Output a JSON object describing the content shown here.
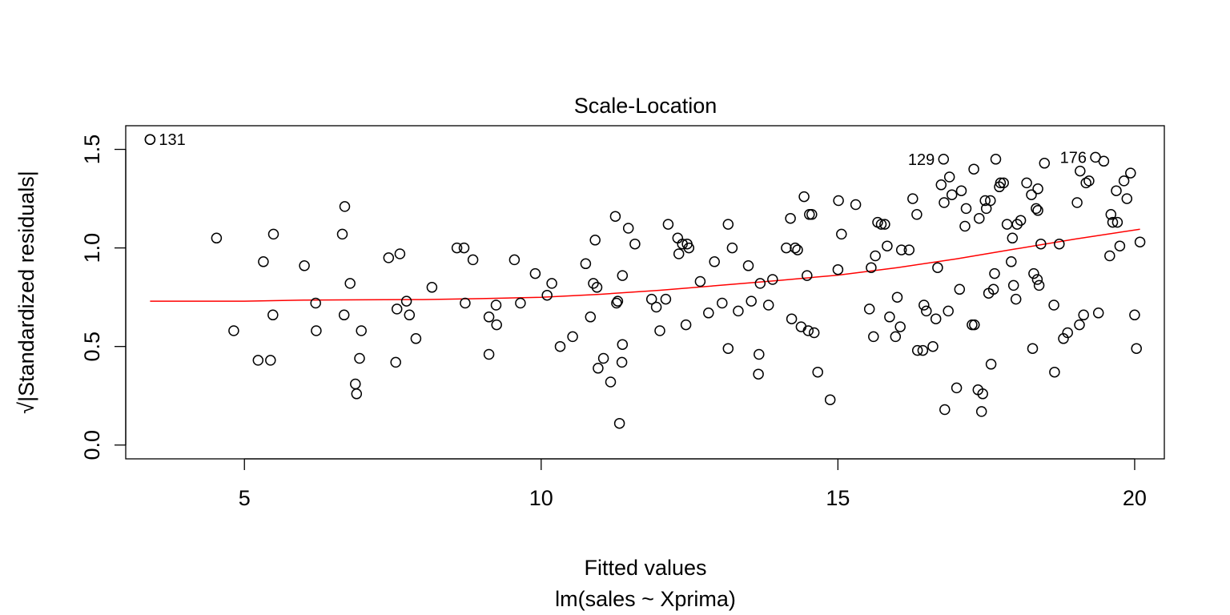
{
  "chart_data": {
    "type": "scatter",
    "title": "Scale-Location",
    "xlabel": "Fitted values",
    "subtitle": "lm(sales ~ Xprima)",
    "ylabel": "√|Standardized residuals|",
    "xlim": [
      3.0,
      20.5
    ],
    "ylim": [
      -0.07,
      1.62
    ],
    "x_ticks": [
      5,
      10,
      15,
      20
    ],
    "x_tick_labels": [
      "5",
      "10",
      "15",
      "20"
    ],
    "y_ticks": [
      0.0,
      0.5,
      1.0,
      1.5
    ],
    "y_tick_labels": [
      "0.0",
      "0.5",
      "1.0",
      "1.5"
    ],
    "grid": false,
    "legend": "none",
    "point_color": "#000000",
    "smooth_color": "#ff0000",
    "labeled_points": [
      {
        "label": "131",
        "x": 3.41,
        "y": 1.55
      },
      {
        "label": "129",
        "x": 16.78,
        "y": 1.45
      },
      {
        "label": "176",
        "x": 19.34,
        "y": 1.46
      }
    ],
    "points": [
      [
        3.41,
        1.55
      ],
      [
        4.53,
        1.05
      ],
      [
        4.82,
        0.58
      ],
      [
        5.23,
        0.43
      ],
      [
        5.32,
        0.93
      ],
      [
        5.44,
        0.43
      ],
      [
        5.48,
        0.66
      ],
      [
        5.49,
        1.07
      ],
      [
        6.01,
        0.91
      ],
      [
        6.2,
        0.72
      ],
      [
        6.21,
        0.58
      ],
      [
        6.65,
        1.07
      ],
      [
        6.68,
        0.66
      ],
      [
        6.69,
        1.21
      ],
      [
        6.78,
        0.82
      ],
      [
        6.87,
        0.31
      ],
      [
        6.89,
        0.26
      ],
      [
        6.94,
        0.44
      ],
      [
        6.97,
        0.58
      ],
      [
        7.43,
        0.95
      ],
      [
        7.55,
        0.42
      ],
      [
        7.57,
        0.69
      ],
      [
        7.62,
        0.97
      ],
      [
        7.73,
        0.73
      ],
      [
        7.78,
        0.66
      ],
      [
        7.89,
        0.54
      ],
      [
        8.16,
        0.8
      ],
      [
        8.58,
        1.0
      ],
      [
        8.7,
        1.0
      ],
      [
        8.72,
        0.72
      ],
      [
        8.85,
        0.94
      ],
      [
        9.12,
        0.46
      ],
      [
        9.12,
        0.65
      ],
      [
        9.24,
        0.71
      ],
      [
        9.25,
        0.61
      ],
      [
        9.55,
        0.94
      ],
      [
        9.65,
        0.72
      ],
      [
        9.9,
        0.87
      ],
      [
        10.1,
        0.76
      ],
      [
        10.18,
        0.82
      ],
      [
        10.32,
        0.5
      ],
      [
        10.53,
        0.55
      ],
      [
        10.75,
        0.92
      ],
      [
        10.83,
        0.65
      ],
      [
        10.88,
        0.82
      ],
      [
        10.91,
        1.04
      ],
      [
        10.94,
        0.8
      ],
      [
        10.96,
        0.39
      ],
      [
        11.05,
        0.44
      ],
      [
        11.17,
        0.32
      ],
      [
        11.25,
        1.16
      ],
      [
        11.27,
        0.72
      ],
      [
        11.29,
        0.73
      ],
      [
        11.32,
        0.11
      ],
      [
        11.36,
        0.42
      ],
      [
        11.37,
        0.51
      ],
      [
        11.37,
        0.86
      ],
      [
        11.47,
        1.1
      ],
      [
        11.58,
        1.02
      ],
      [
        11.86,
        0.74
      ],
      [
        11.94,
        0.7
      ],
      [
        12.0,
        0.58
      ],
      [
        12.1,
        0.74
      ],
      [
        12.14,
        1.12
      ],
      [
        12.3,
        1.05
      ],
      [
        12.32,
        0.97
      ],
      [
        12.38,
        1.02
      ],
      [
        12.44,
        0.61
      ],
      [
        12.46,
        1.02
      ],
      [
        12.49,
        1.0
      ],
      [
        12.68,
        0.83
      ],
      [
        12.82,
        0.67
      ],
      [
        12.92,
        0.93
      ],
      [
        13.05,
        0.72
      ],
      [
        13.15,
        1.12
      ],
      [
        13.15,
        0.49
      ],
      [
        13.22,
        1.0
      ],
      [
        13.32,
        0.68
      ],
      [
        13.49,
        0.91
      ],
      [
        13.54,
        0.73
      ],
      [
        13.66,
        0.36
      ],
      [
        13.67,
        0.46
      ],
      [
        13.69,
        0.82
      ],
      [
        13.83,
        0.71
      ],
      [
        13.9,
        0.84
      ],
      [
        14.13,
        1.0
      ],
      [
        14.2,
        1.15
      ],
      [
        14.22,
        0.64
      ],
      [
        14.28,
        1.0
      ],
      [
        14.32,
        0.99
      ],
      [
        14.38,
        0.6
      ],
      [
        14.43,
        1.26
      ],
      [
        14.48,
        0.86
      ],
      [
        14.5,
        0.58
      ],
      [
        14.52,
        1.17
      ],
      [
        14.56,
        1.17
      ],
      [
        14.6,
        0.57
      ],
      [
        14.66,
        0.37
      ],
      [
        14.87,
        0.23
      ],
      [
        15.0,
        0.89
      ],
      [
        15.01,
        1.24
      ],
      [
        15.06,
        1.07
      ],
      [
        15.3,
        1.22
      ],
      [
        15.53,
        0.69
      ],
      [
        15.56,
        0.9
      ],
      [
        15.6,
        0.55
      ],
      [
        15.63,
        0.96
      ],
      [
        15.67,
        1.13
      ],
      [
        15.73,
        1.12
      ],
      [
        15.79,
        1.12
      ],
      [
        15.83,
        1.01
      ],
      [
        15.87,
        0.65
      ],
      [
        15.97,
        0.55
      ],
      [
        16.0,
        0.75
      ],
      [
        16.05,
        0.6
      ],
      [
        16.07,
        0.99
      ],
      [
        16.2,
        0.99
      ],
      [
        16.26,
        1.25
      ],
      [
        16.33,
        1.17
      ],
      [
        16.34,
        0.48
      ],
      [
        16.43,
        0.48
      ],
      [
        16.45,
        0.71
      ],
      [
        16.49,
        0.68
      ],
      [
        16.6,
        0.5
      ],
      [
        16.65,
        0.64
      ],
      [
        16.68,
        0.9
      ],
      [
        16.74,
        1.32
      ],
      [
        16.79,
        1.23
      ],
      [
        16.8,
        0.18
      ],
      [
        16.86,
        0.68
      ],
      [
        16.88,
        1.36
      ],
      [
        16.92,
        1.27
      ],
      [
        17.0,
        0.29
      ],
      [
        17.05,
        0.79
      ],
      [
        17.08,
        1.29
      ],
      [
        17.14,
        1.11
      ],
      [
        17.16,
        1.2
      ],
      [
        17.26,
        0.61
      ],
      [
        17.29,
        1.4
      ],
      [
        17.3,
        0.61
      ],
      [
        17.36,
        0.28
      ],
      [
        17.38,
        1.15
      ],
      [
        17.42,
        0.17
      ],
      [
        17.44,
        0.26
      ],
      [
        17.48,
        1.24
      ],
      [
        17.5,
        1.2
      ],
      [
        17.54,
        0.77
      ],
      [
        17.57,
        1.24
      ],
      [
        17.58,
        0.41
      ],
      [
        17.62,
        0.79
      ],
      [
        17.64,
        0.87
      ],
      [
        17.66,
        1.45
      ],
      [
        17.72,
        1.31
      ],
      [
        17.74,
        1.33
      ],
      [
        17.79,
        1.33
      ],
      [
        17.85,
        1.12
      ],
      [
        17.92,
        0.93
      ],
      [
        17.94,
        1.05
      ],
      [
        17.96,
        0.81
      ],
      [
        18.0,
        0.74
      ],
      [
        18.02,
        1.12
      ],
      [
        18.08,
        1.14
      ],
      [
        18.18,
        1.33
      ],
      [
        18.26,
        1.27
      ],
      [
        18.28,
        0.49
      ],
      [
        18.3,
        0.87
      ],
      [
        18.34,
        1.2
      ],
      [
        18.36,
        0.84
      ],
      [
        18.37,
        1.19
      ],
      [
        18.37,
        1.3
      ],
      [
        18.39,
        0.81
      ],
      [
        18.42,
        1.02
      ],
      [
        18.48,
        1.43
      ],
      [
        18.64,
        0.71
      ],
      [
        18.65,
        0.37
      ],
      [
        18.73,
        1.02
      ],
      [
        18.8,
        0.54
      ],
      [
        18.87,
        0.57
      ],
      [
        19.03,
        1.23
      ],
      [
        19.07,
        0.61
      ],
      [
        19.08,
        1.39
      ],
      [
        19.14,
        0.66
      ],
      [
        19.18,
        1.33
      ],
      [
        19.23,
        1.34
      ],
      [
        19.39,
        0.67
      ],
      [
        19.48,
        1.44
      ],
      [
        19.58,
        0.96
      ],
      [
        19.6,
        1.17
      ],
      [
        19.63,
        1.13
      ],
      [
        19.69,
        1.29
      ],
      [
        19.71,
        1.13
      ],
      [
        19.75,
        1.01
      ],
      [
        19.82,
        1.34
      ],
      [
        19.87,
        1.25
      ],
      [
        19.93,
        1.38
      ],
      [
        20.0,
        0.66
      ],
      [
        20.03,
        0.49
      ],
      [
        20.09,
        1.03
      ]
    ],
    "smooth_line": [
      [
        3.41,
        0.73
      ],
      [
        5.0,
        0.73
      ],
      [
        6.0,
        0.735
      ],
      [
        7.0,
        0.737
      ],
      [
        8.0,
        0.738
      ],
      [
        9.0,
        0.743
      ],
      [
        10.0,
        0.75
      ],
      [
        11.0,
        0.765
      ],
      [
        12.0,
        0.785
      ],
      [
        13.0,
        0.81
      ],
      [
        14.0,
        0.835
      ],
      [
        15.0,
        0.862
      ],
      [
        16.0,
        0.9
      ],
      [
        17.0,
        0.945
      ],
      [
        18.0,
        0.995
      ],
      [
        19.0,
        1.045
      ],
      [
        20.09,
        1.095
      ]
    ]
  }
}
